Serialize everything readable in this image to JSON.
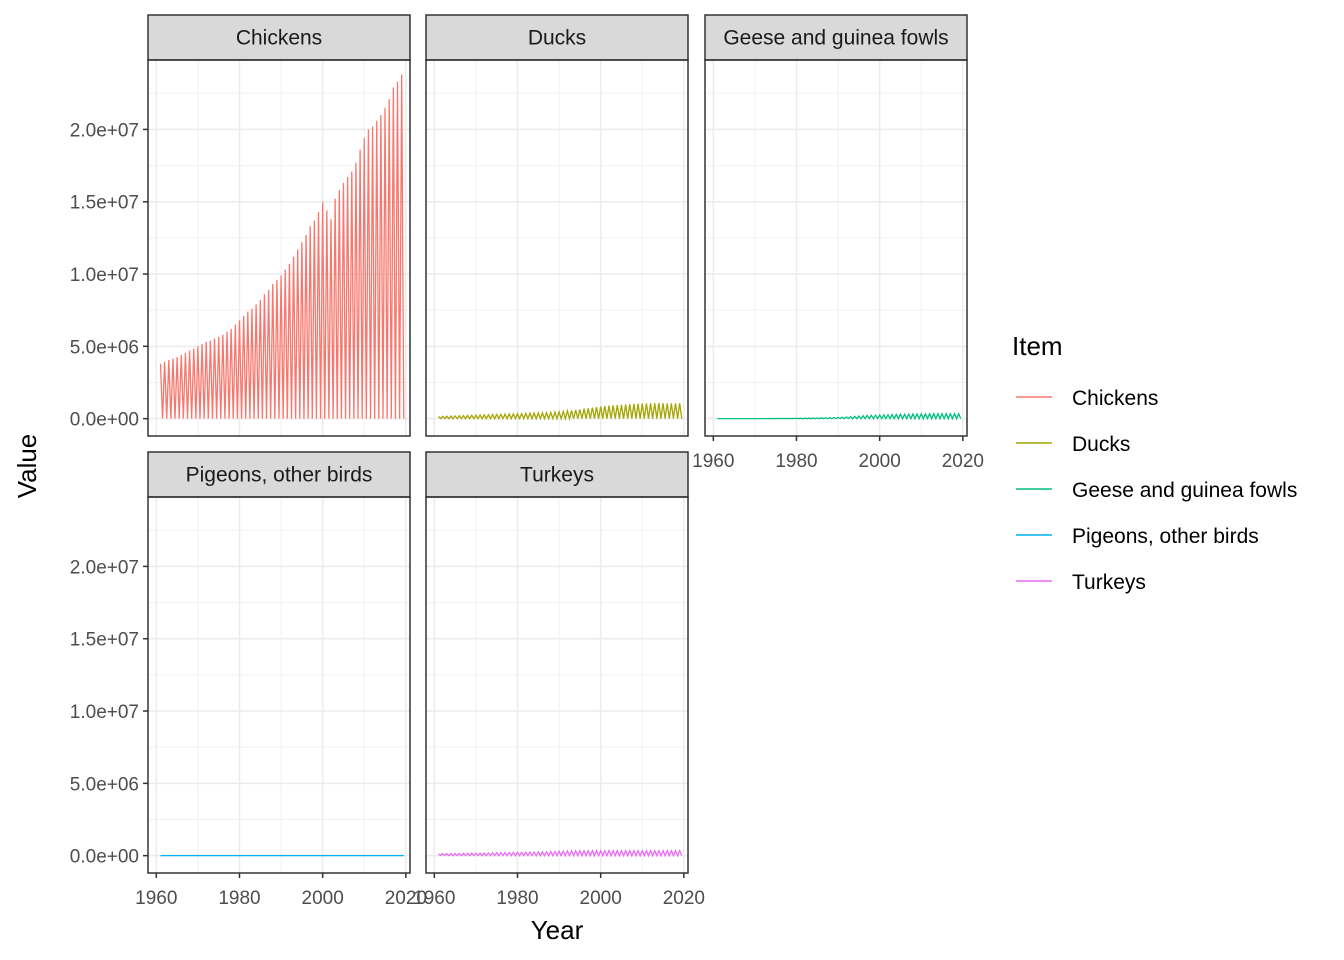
{
  "chart_data": {
    "type": "line",
    "layout": "faceted",
    "xlabel": "Year",
    "ylabel": "Value",
    "xlim": [
      1958,
      2021
    ],
    "ylim": [
      -1200000,
      24800000
    ],
    "x_ticks": [
      1960,
      1980,
      2000,
      2020
    ],
    "x_tick_labels": [
      "1960",
      "1980",
      "2000",
      "2020"
    ],
    "y_ticks": [
      0,
      5000000,
      10000000,
      15000000,
      20000000
    ],
    "y_tick_labels": [
      "0.0e+00",
      "5.0e+06",
      "1.0e+07",
      "1.5e+07",
      "2.0e+07"
    ],
    "grid": true,
    "legend": {
      "title": "Item",
      "position": "right",
      "entries": [
        "Chickens",
        "Ducks",
        "Geese and guinea fowls",
        "Pigeons, other birds",
        "Turkeys"
      ]
    },
    "series": [
      {
        "name": "Chickens",
        "color": "#F8766D",
        "x_start": 1961,
        "values": [
          3800000,
          3950000,
          4050000,
          4150000,
          4250000,
          4400000,
          4550000,
          4700000,
          4850000,
          5000000,
          5150000,
          5300000,
          5400000,
          5550000,
          5650000,
          5800000,
          6000000,
          6200000,
          6500000,
          6800000,
          7100000,
          7400000,
          7600000,
          7900000,
          8200000,
          8600000,
          8900000,
          9300000,
          9600000,
          9900000,
          10300000,
          10700000,
          11200000,
          11700000,
          12200000,
          12700000,
          13300000,
          13700000,
          14300000,
          15000000,
          14400000,
          13800000,
          15200000,
          15800000,
          16300000,
          16700000,
          17100000,
          17700000,
          18600000,
          19400000,
          20000000,
          20200000,
          20600000,
          21000000,
          21500000,
          22100000,
          22900000,
          23300000,
          23800000
        ]
      },
      {
        "name": "Ducks",
        "color": "#A3A500",
        "x_start": 1961,
        "values": [
          150000,
          160000,
          170000,
          180000,
          190000,
          200000,
          210000,
          220000,
          230000,
          240000,
          250000,
          260000,
          270000,
          280000,
          290000,
          300000,
          310000,
          320000,
          330000,
          340000,
          350000,
          360000,
          370000,
          380000,
          390000,
          400000,
          410000,
          430000,
          450000,
          470000,
          500000,
          530000,
          560000,
          600000,
          640000,
          680000,
          720000,
          760000,
          800000,
          840000,
          880000,
          900000,
          920000,
          940000,
          960000,
          980000,
          1000000,
          1020000,
          1040000,
          1050000,
          1060000,
          1070000,
          1080000,
          1080000,
          1070000,
          1060000,
          1060000,
          1060000,
          1060000
        ]
      },
      {
        "name": "Geese and guinea fowls",
        "color": "#00BF7D",
        "x_start": 1961,
        "values": [
          0,
          0,
          0,
          0,
          0,
          0,
          0,
          0,
          0,
          0,
          0,
          0,
          10000,
          12000,
          14000,
          16000,
          18000,
          20000,
          24000,
          28000,
          32000,
          36000,
          40000,
          45000,
          50000,
          55000,
          60000,
          70000,
          80000,
          90000,
          100000,
          120000,
          140000,
          160000,
          180000,
          200000,
          220000,
          230000,
          240000,
          250000,
          260000,
          270000,
          280000,
          290000,
          300000,
          300000,
          310000,
          320000,
          320000,
          330000,
          330000,
          340000,
          340000,
          340000,
          340000,
          340000,
          340000,
          340000,
          340000
        ]
      },
      {
        "name": "Pigeons, other birds",
        "color": "#00B0F6",
        "x_start": 1961,
        "values": [
          5000,
          5000,
          5000,
          5000,
          5000,
          5000,
          5000,
          5000,
          5000,
          5000,
          5000,
          5000,
          5000,
          5000,
          5000,
          5000,
          5000,
          5000,
          5000,
          5000,
          5000,
          5000,
          5000,
          5000,
          5000,
          5000,
          5000,
          5000,
          5000,
          5000,
          5000,
          5000,
          5000,
          5000,
          5000,
          5000,
          5000,
          5000,
          5000,
          5000,
          5000,
          5000,
          5000,
          5000,
          5000,
          5000,
          5000,
          5000,
          5000,
          5000,
          5000,
          5000,
          5000,
          5000,
          5000,
          5000,
          5000,
          5000,
          5000
        ]
      },
      {
        "name": "Turkeys",
        "color": "#E76BF3",
        "x_start": 1961,
        "values": [
          130000,
          135000,
          140000,
          145000,
          150000,
          155000,
          160000,
          165000,
          170000,
          175000,
          180000,
          185000,
          190000,
          195000,
          200000,
          205000,
          210000,
          215000,
          220000,
          225000,
          230000,
          235000,
          240000,
          245000,
          250000,
          260000,
          270000,
          280000,
          290000,
          300000,
          310000,
          320000,
          330000,
          340000,
          340000,
          340000,
          340000,
          340000,
          340000,
          340000,
          340000,
          340000,
          340000,
          340000,
          340000,
          340000,
          340000,
          340000,
          340000,
          340000,
          340000,
          340000,
          340000,
          340000,
          340000,
          340000,
          340000,
          340000,
          340000
        ]
      }
    ]
  }
}
